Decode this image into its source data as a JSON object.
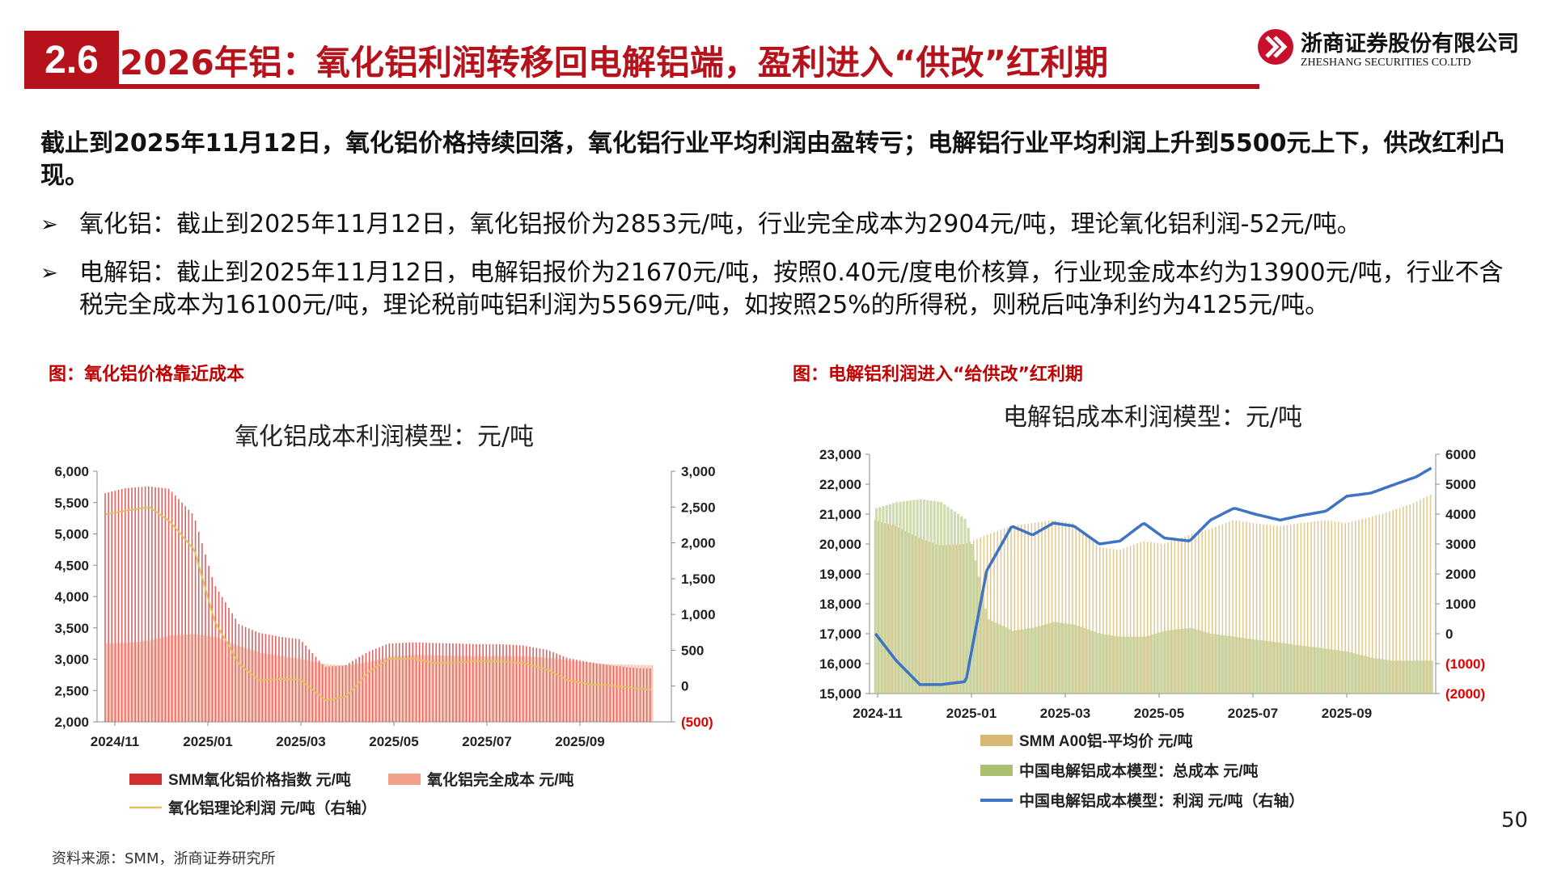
{
  "header": {
    "section_number": "2.6",
    "title": "2026年铝：氧化铝利润转移回电解铝端，盈利进入“供改”红利期",
    "company_cn": "浙商证券股份有限公司",
    "company_en": "ZHESHANG SECURITIES CO.LTD"
  },
  "body": {
    "lead": "截止到2025年11月12日，氧化铝价格持续回落，氧化铝行业平均利润由盈转亏；电解铝行业平均利润上升到5500元上下，供改红利凸现。",
    "bullet_mark": "➢",
    "bullets": [
      "氧化铝：截止到2025年11月12日，氧化铝报价为2853元/吨，行业完全成本为2904元/吨，理论氧化铝利润-52元/吨。",
      "电解铝：截止到2025年11月12日，电解铝报价为21670元/吨，按照0.40元/度电价核算，行业现金成本约为13900元/吨，行业不含税完全成本为16100元/吨，理论税前吨铝利润为5569元/吨，如按照25%的所得税，则税后吨净利约为4125元/吨。"
    ]
  },
  "figures": {
    "left_caption": "图：氧化铝价格靠近成本",
    "right_caption": "图：电解铝利润进入“给供改”红利期"
  },
  "footer": {
    "source": "资料来源：SMM，浙商证券研究所",
    "page_number": "50"
  },
  "chart_data": [
    {
      "type": "bar",
      "title": "氧化铝成本利润模型：元/吨",
      "x_tick_labels": [
        "2024/11",
        "2025/01",
        "2025/03",
        "2025/05",
        "2025/07",
        "2025/09"
      ],
      "y_left_ticks": [
        "6,000",
        "5,500",
        "5,000",
        "4,500",
        "4,000",
        "3,500",
        "3,000",
        "2,500",
        "2,000"
      ],
      "y_right_ticks": [
        "3,000",
        "2,500",
        "2,000",
        "1,500",
        "1,000",
        "500",
        "0",
        "(500)"
      ],
      "ylim_left": [
        2000,
        6000
      ],
      "ylim_right": [
        -500,
        3000
      ],
      "legend_placement": "bottom",
      "colors": {
        "price": "#d32f2f",
        "cost": "#f2a08a",
        "profit": "#e0c060"
      },
      "series": [
        {
          "name": "SMM氧化铝价格指数 元/吨",
          "axis": "left",
          "kind": "bar",
          "x": [
            "2024-11-01",
            "2024-11-15",
            "2024-12-01",
            "2024-12-15",
            "2025-01-01",
            "2025-01-15",
            "2025-02-01",
            "2025-02-15",
            "2025-03-01",
            "2025-03-15",
            "2025-04-01",
            "2025-04-15",
            "2025-05-01",
            "2025-05-15",
            "2025-06-01",
            "2025-06-15",
            "2025-07-01",
            "2025-07-15",
            "2025-08-01",
            "2025-08-15",
            "2025-09-01",
            "2025-09-15",
            "2025-10-01",
            "2025-10-15",
            "2025-11-01",
            "2025-11-12"
          ],
          "values": [
            5650,
            5730,
            5760,
            5720,
            5300,
            4200,
            3560,
            3420,
            3360,
            3320,
            2880,
            2900,
            3120,
            3250,
            3270,
            3260,
            3250,
            3240,
            3240,
            3220,
            3150,
            3020,
            2950,
            2900,
            2860,
            2853
          ]
        },
        {
          "name": "氧化铝完全成本 元/吨",
          "axis": "left",
          "kind": "bar",
          "x": [
            "2024-11-01",
            "2024-11-15",
            "2024-12-01",
            "2024-12-15",
            "2025-01-01",
            "2025-01-15",
            "2025-02-01",
            "2025-02-15",
            "2025-03-01",
            "2025-03-15",
            "2025-04-01",
            "2025-04-15",
            "2025-05-01",
            "2025-05-15",
            "2025-06-01",
            "2025-06-15",
            "2025-07-01",
            "2025-07-15",
            "2025-08-01",
            "2025-08-15",
            "2025-09-01",
            "2025-09-15",
            "2025-10-01",
            "2025-10-15",
            "2025-11-01",
            "2025-11-12"
          ],
          "values": [
            3250,
            3260,
            3300,
            3380,
            3400,
            3350,
            3200,
            3100,
            3050,
            3000,
            2920,
            2900,
            2960,
            3040,
            3070,
            3060,
            3050,
            3050,
            3050,
            3050,
            3020,
            2980,
            2940,
            2920,
            2910,
            2904
          ]
        },
        {
          "name": "氧化铝理论利润 元/吨（右轴）",
          "axis": "right",
          "kind": "line",
          "x": [
            "2024-11-01",
            "2024-11-15",
            "2024-12-01",
            "2024-12-15",
            "2025-01-01",
            "2025-01-15",
            "2025-02-01",
            "2025-02-15",
            "2025-03-01",
            "2025-03-15",
            "2025-04-01",
            "2025-04-15",
            "2025-05-01",
            "2025-05-15",
            "2025-06-01",
            "2025-06-15",
            "2025-07-01",
            "2025-07-15",
            "2025-08-01",
            "2025-08-15",
            "2025-09-01",
            "2025-09-15",
            "2025-10-01",
            "2025-10-15",
            "2025-11-01",
            "2025-11-12"
          ],
          "values": [
            2400,
            2450,
            2500,
            2300,
            1900,
            900,
            300,
            80,
            100,
            90,
            -200,
            -150,
            200,
            380,
            380,
            320,
            330,
            350,
            340,
            320,
            230,
            80,
            20,
            10,
            -30,
            -52
          ]
        }
      ]
    },
    {
      "type": "bar",
      "title": "电解铝成本利润模型：元/吨",
      "x_tick_labels": [
        "2024-11",
        "2025-01",
        "2025-03",
        "2025-05",
        "2025-07",
        "2025-09"
      ],
      "y_left_ticks": [
        "23,000",
        "22,000",
        "21,000",
        "20,000",
        "19,000",
        "18,000",
        "17,000",
        "16,000",
        "15,000"
      ],
      "y_right_ticks": [
        "6000",
        "5000",
        "4000",
        "3000",
        "2000",
        "1000",
        "0",
        "(1000)",
        "(2000)"
      ],
      "ylim_left": [
        15000,
        23000
      ],
      "ylim_right": [
        -2000,
        6000
      ],
      "legend_placement": "bottom",
      "colors": {
        "price": "#d8b870",
        "cost": "#a8c070",
        "profit": "#3f74c4",
        "negative_ticks": "#e00000"
      },
      "series": [
        {
          "name": "SMM A00铝-平均价 元/吨",
          "axis": "left",
          "kind": "bar",
          "x": [
            "2024-11-01",
            "2024-11-15",
            "2024-12-01",
            "2024-12-15",
            "2025-01-01",
            "2025-01-15",
            "2025-02-01",
            "2025-02-15",
            "2025-03-01",
            "2025-03-15",
            "2025-04-01",
            "2025-04-15",
            "2025-05-01",
            "2025-05-15",
            "2025-06-01",
            "2025-06-15",
            "2025-07-01",
            "2025-07-15",
            "2025-08-01",
            "2025-08-15",
            "2025-09-01",
            "2025-09-15",
            "2025-10-01",
            "2025-10-15",
            "2025-11-01",
            "2025-11-12"
          ],
          "values": [
            20800,
            20600,
            20200,
            19950,
            20000,
            20300,
            20600,
            20700,
            20800,
            20700,
            19900,
            19800,
            20100,
            20000,
            20300,
            20500,
            20800,
            20700,
            20600,
            20700,
            20800,
            20700,
            20900,
            21100,
            21400,
            21670
          ]
        },
        {
          "name": "中国电解铝成本模型：总成本 元/吨",
          "axis": "left",
          "kind": "bar",
          "x": [
            "2024-11-01",
            "2024-11-15",
            "2024-12-01",
            "2024-12-15",
            "2025-01-01",
            "2025-01-15",
            "2025-02-01",
            "2025-02-15",
            "2025-03-01",
            "2025-03-15",
            "2025-04-01",
            "2025-04-15",
            "2025-05-01",
            "2025-05-15",
            "2025-06-01",
            "2025-06-15",
            "2025-07-01",
            "2025-07-15",
            "2025-08-01",
            "2025-08-15",
            "2025-09-01",
            "2025-09-15",
            "2025-10-01",
            "2025-10-15",
            "2025-11-01",
            "2025-11-12"
          ],
          "values": [
            21200,
            21400,
            21500,
            21400,
            20800,
            17500,
            17100,
            17200,
            17400,
            17300,
            17000,
            16900,
            16900,
            17100,
            17200,
            17000,
            16900,
            16800,
            16700,
            16600,
            16500,
            16400,
            16200,
            16100,
            16100,
            16100
          ]
        },
        {
          "name": "中国电解铝成本模型：利润 元/吨（右轴）",
          "axis": "right",
          "kind": "line",
          "x": [
            "2024-11-01",
            "2024-11-15",
            "2024-12-01",
            "2024-12-15",
            "2025-01-01",
            "2025-01-15",
            "2025-02-01",
            "2025-02-15",
            "2025-03-01",
            "2025-03-15",
            "2025-04-01",
            "2025-04-15",
            "2025-05-01",
            "2025-05-15",
            "2025-06-01",
            "2025-06-15",
            "2025-07-01",
            "2025-07-15",
            "2025-08-01",
            "2025-08-15",
            "2025-09-01",
            "2025-09-15",
            "2025-10-01",
            "2025-10-15",
            "2025-11-01",
            "2025-11-12"
          ],
          "values": [
            0,
            -900,
            -1700,
            -1700,
            -1600,
            2100,
            3600,
            3300,
            3700,
            3600,
            3000,
            3100,
            3700,
            3200,
            3100,
            3800,
            4200,
            4000,
            3800,
            3950,
            4100,
            4600,
            4700,
            4950,
            5250,
            5569
          ]
        }
      ]
    }
  ]
}
